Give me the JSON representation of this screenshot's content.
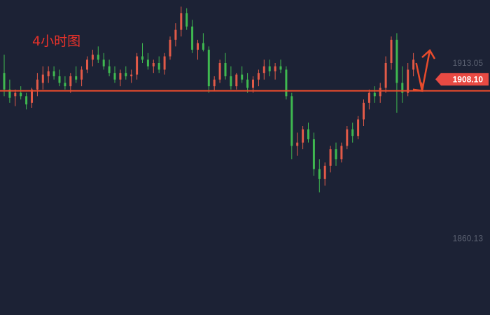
{
  "title": "4小时图",
  "chart_data": {
    "type": "candlestick",
    "title": "4小时图",
    "up_color": "#e25a48",
    "down_color": "#3fb950",
    "line_color": "#e84b2c",
    "arrow_color": "#e84b2c",
    "price_labels": {
      "upper": {
        "value": 1913.05,
        "text": "1913.05"
      },
      "current": {
        "value": 1908.1,
        "text": "1908.10"
      },
      "lower": {
        "value": 1860.13,
        "text": "1860.13"
      }
    },
    "horizontal_line": 1904.6,
    "ylim": [
      1837.0,
      1932.0
    ],
    "candles": [
      [
        1910.0,
        1915.5,
        1903.0,
        1905.0
      ],
      [
        1905.0,
        1908.0,
        1901.0,
        1902.5
      ],
      [
        1903.0,
        1905.0,
        1900.0,
        1904.0
      ],
      [
        1904.0,
        1906.0,
        1902.0,
        1903.0
      ],
      [
        1903.0,
        1904.0,
        1899.0,
        1900.5
      ],
      [
        1901.0,
        1905.5,
        1899.5,
        1905.0
      ],
      [
        1905.0,
        1910.0,
        1903.0,
        1908.0
      ],
      [
        1907.0,
        1912.0,
        1905.0,
        1909.5
      ],
      [
        1909.0,
        1912.0,
        1907.0,
        1910.5
      ],
      [
        1910.5,
        1912.0,
        1908.0,
        1909.0
      ],
      [
        1909.0,
        1911.0,
        1906.0,
        1907.0
      ],
      [
        1907.0,
        1909.0,
        1905.0,
        1906.0
      ],
      [
        1906.0,
        1910.0,
        1904.0,
        1909.0
      ],
      [
        1909.0,
        1912.0,
        1907.0,
        1908.0
      ],
      [
        1908.0,
        1912.0,
        1906.0,
        1911.0
      ],
      [
        1911.0,
        1915.0,
        1910.0,
        1914.0
      ],
      [
        1914.0,
        1917.0,
        1912.0,
        1915.5
      ],
      [
        1915.5,
        1918.0,
        1913.0,
        1914.0
      ],
      [
        1914.0,
        1916.0,
        1911.0,
        1912.0
      ],
      [
        1912.0,
        1914.0,
        1909.0,
        1910.0
      ],
      [
        1910.0,
        1912.0,
        1907.0,
        1908.0
      ],
      [
        1908.0,
        1911.0,
        1906.0,
        1910.0
      ],
      [
        1910.0,
        1912.0,
        1908.0,
        1909.0
      ],
      [
        1909.0,
        1911.0,
        1907.0,
        1909.5
      ],
      [
        1909.5,
        1916.0,
        1908.0,
        1915.0
      ],
      [
        1915.0,
        1919.0,
        1913.0,
        1914.0
      ],
      [
        1914.0,
        1916.0,
        1911.0,
        1912.0
      ],
      [
        1912.0,
        1914.0,
        1910.0,
        1913.0
      ],
      [
        1913.0,
        1915.0,
        1910.0,
        1911.0
      ],
      [
        1911.0,
        1916.0,
        1909.5,
        1915.0
      ],
      [
        1915.0,
        1921.0,
        1914.0,
        1920.0
      ],
      [
        1920.0,
        1925.0,
        1918.0,
        1923.0
      ],
      [
        1923.0,
        1930.0,
        1921.0,
        1928.0
      ],
      [
        1928.0,
        1929.5,
        1923.0,
        1924.0
      ],
      [
        1924.0,
        1926.0,
        1916.0,
        1917.0
      ],
      [
        1917.0,
        1920.0,
        1914.0,
        1919.0
      ],
      [
        1919.0,
        1922.0,
        1916.5,
        1917.0
      ],
      [
        1917.0,
        1918.0,
        1904.0,
        1906.0
      ],
      [
        1906.0,
        1909.0,
        1904.5,
        1908.0
      ],
      [
        1908.0,
        1914.0,
        1907.0,
        1913.0
      ],
      [
        1913.0,
        1916.0,
        1908.0,
        1909.0
      ],
      [
        1909.0,
        1912.0,
        1905.0,
        1906.0
      ],
      [
        1906.0,
        1910.0,
        1905.0,
        1909.5
      ],
      [
        1909.5,
        1912.0,
        1907.0,
        1908.0
      ],
      [
        1908.0,
        1910.0,
        1904.0,
        1905.5
      ],
      [
        1905.5,
        1909.0,
        1904.0,
        1908.0
      ],
      [
        1908.0,
        1911.0,
        1906.0,
        1910.0
      ],
      [
        1910.0,
        1914.0,
        1908.0,
        1912.0
      ],
      [
        1912.0,
        1914.0,
        1909.0,
        1910.5
      ],
      [
        1910.5,
        1913.0,
        1908.0,
        1912.0
      ],
      [
        1912.0,
        1914.0,
        1910.0,
        1911.0
      ],
      [
        1911.0,
        1912.0,
        1902.0,
        1903.0
      ],
      [
        1903.0,
        1904.0,
        1884.0,
        1888.0
      ],
      [
        1888.0,
        1892.0,
        1885.0,
        1889.0
      ],
      [
        1889.0,
        1894.0,
        1887.0,
        1893.0
      ],
      [
        1893.0,
        1895.0,
        1889.0,
        1890.0
      ],
      [
        1890.0,
        1892.0,
        1879.0,
        1881.0
      ],
      [
        1881.0,
        1884.0,
        1874.0,
        1878.0
      ],
      [
        1878.0,
        1883.0,
        1876.0,
        1882.0
      ],
      [
        1882.0,
        1888.0,
        1880.0,
        1887.0
      ],
      [
        1887.0,
        1889.0,
        1882.0,
        1884.0
      ],
      [
        1884.0,
        1889.0,
        1883.0,
        1888.0
      ],
      [
        1888.0,
        1894.0,
        1887.0,
        1893.0
      ],
      [
        1893.0,
        1895.0,
        1889.0,
        1891.0
      ],
      [
        1891.0,
        1897.0,
        1890.0,
        1896.0
      ],
      [
        1896.0,
        1902.0,
        1894.0,
        1901.0
      ],
      [
        1901.0,
        1905.0,
        1899.0,
        1904.0
      ],
      [
        1904.0,
        1906.0,
        1901.0,
        1903.0
      ],
      [
        1903.0,
        1907.0,
        1901.0,
        1905.5
      ],
      [
        1905.5,
        1915.0,
        1904.0,
        1913.0
      ],
      [
        1913.0,
        1921.0,
        1911.0,
        1920.0
      ],
      [
        1920.0,
        1922.0,
        1898.0,
        1907.0
      ],
      [
        1907.0,
        1912.0,
        1901.0,
        1904.0
      ],
      [
        1904.0,
        1913.0,
        1903.0,
        1911.0
      ],
      [
        1911.0,
        1916.0,
        1909.0,
        1914.0
      ]
    ]
  }
}
